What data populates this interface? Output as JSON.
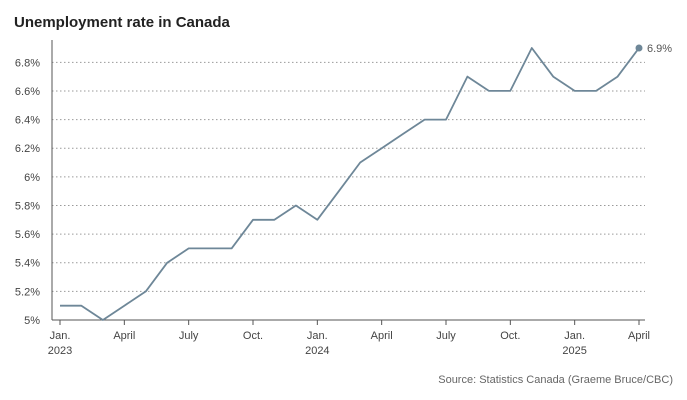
{
  "chart_data": {
    "type": "line",
    "title": "Unemployment rate in Canada",
    "source": "Source: Statistics Canada (Graeme Bruce/CBC)",
    "xlabel": "",
    "ylabel": "",
    "ylim": [
      5.0,
      6.9
    ],
    "yticks": [
      "5%",
      "5.2%",
      "5.4%",
      "5.6%",
      "5.8%",
      "6%",
      "6.2%",
      "6.4%",
      "6.6%",
      "6.8%"
    ],
    "ytick_values": [
      5.0,
      5.2,
      5.4,
      5.6,
      5.8,
      6.0,
      6.2,
      6.4,
      6.6,
      6.8
    ],
    "xticks": [
      {
        "label": "Jan.",
        "sub": "2023",
        "month": "2023-01"
      },
      {
        "label": "April",
        "sub": "",
        "month": "2023-04"
      },
      {
        "label": "July",
        "sub": "",
        "month": "2023-07"
      },
      {
        "label": "Oct.",
        "sub": "",
        "month": "2023-10"
      },
      {
        "label": "Jan.",
        "sub": "2024",
        "month": "2024-01"
      },
      {
        "label": "April",
        "sub": "",
        "month": "2024-04"
      },
      {
        "label": "July",
        "sub": "",
        "month": "2024-07"
      },
      {
        "label": "Oct.",
        "sub": "",
        "month": "2024-10"
      },
      {
        "label": "Jan.",
        "sub": "2025",
        "month": "2025-01"
      },
      {
        "label": "April",
        "sub": "",
        "month": "2025-04"
      }
    ],
    "grid": true,
    "series": [
      {
        "color": "#6e8798",
        "x": [
          "2023-01",
          "2023-02",
          "2023-03",
          "2023-04",
          "2023-05",
          "2023-06",
          "2023-07",
          "2023-08",
          "2023-09",
          "2023-10",
          "2023-11",
          "2023-12",
          "2024-01",
          "2024-02",
          "2024-03",
          "2024-04",
          "2024-05",
          "2024-06",
          "2024-07",
          "2024-08",
          "2024-09",
          "2024-10",
          "2024-11",
          "2024-12",
          "2025-01",
          "2025-02",
          "2025-03",
          "2025-04"
        ],
        "values": [
          5.1,
          5.1,
          5.0,
          5.1,
          5.2,
          5.4,
          5.5,
          5.5,
          5.5,
          5.7,
          5.7,
          5.8,
          5.7,
          5.9,
          6.1,
          6.2,
          6.3,
          6.4,
          6.4,
          6.7,
          6.6,
          6.6,
          6.9,
          6.7,
          6.6,
          6.6,
          6.7,
          6.9
        ]
      }
    ],
    "end_label": "6.9%"
  }
}
